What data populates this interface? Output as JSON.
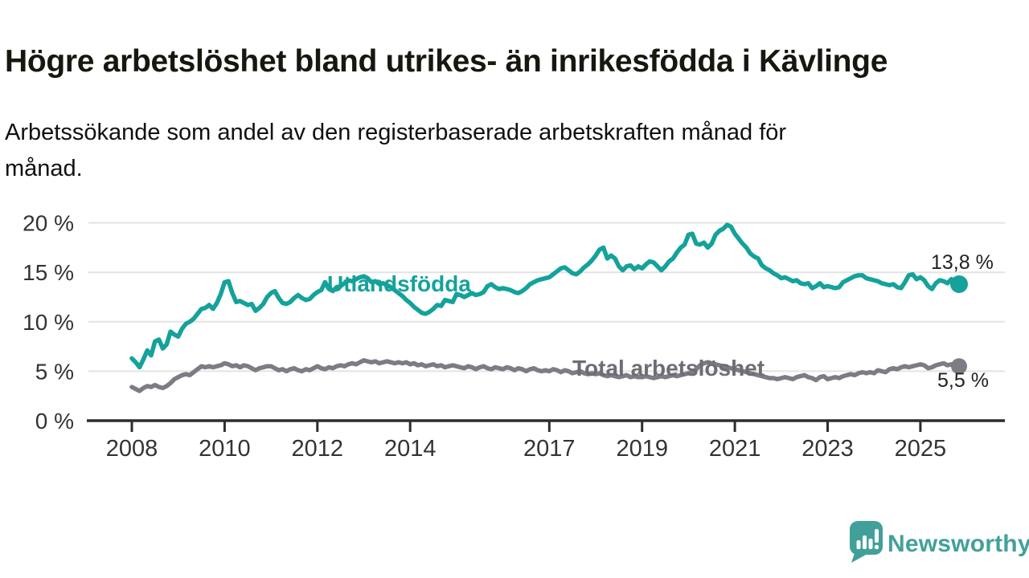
{
  "header": {
    "title": "Högre arbetslöshet bland utrikes- än inrikesfödda i Kävlinge",
    "subtitle_line1": "Arbetssökande som andel av den registerbaserade arbetskraften månad för",
    "subtitle_line2": "månad."
  },
  "chart_data": {
    "type": "line",
    "title": "Högre arbetslöshet bland utrikes- än inrikesfödda i Kävlinge",
    "subtitle": "Arbetssökande som andel av den registerbaserade arbetskraften månad för månad.",
    "x_unit": "month",
    "x_start": "2008-01",
    "x_end": "2025-11",
    "x_tick_years": [
      2008,
      2010,
      2012,
      2014,
      2017,
      2019,
      2021,
      2023,
      2025
    ],
    "x_tick_labels": [
      "2008",
      "2010",
      "2012",
      "2014",
      "2017",
      "2019",
      "2021",
      "2023",
      "2025"
    ],
    "y_ticks": [
      0,
      5,
      10,
      15,
      20
    ],
    "y_tick_labels": [
      "0 %",
      "5 %",
      "10 %",
      "15 %",
      "20 %"
    ],
    "ylim": [
      0,
      21
    ],
    "grid": "horizontal",
    "legend_position": "inline-labels",
    "series": [
      {
        "name": "Utlandsfödda",
        "color": "#14a29b",
        "label_color": "#14a29b",
        "end_label": "13,8 %",
        "end_value": 13.8,
        "values": [
          6.3,
          5.9,
          5.4,
          6.2,
          7.1,
          6.6,
          8.0,
          8.2,
          7.3,
          7.7,
          9.0,
          8.7,
          8.5,
          9.3,
          9.8,
          10.0,
          10.3,
          10.8,
          11.3,
          11.4,
          11.7,
          11.3,
          11.9,
          12.8,
          14.0,
          14.1,
          12.9,
          12.0,
          12.1,
          11.9,
          11.7,
          11.8,
          11.1,
          11.4,
          11.8,
          12.5,
          12.9,
          13.1,
          12.4,
          11.9,
          11.8,
          12.0,
          12.4,
          12.7,
          12.4,
          12.2,
          12.3,
          12.7,
          13.0,
          13.2,
          14.0,
          13.3,
          13.1,
          13.5,
          13.6,
          13.9,
          14.2,
          14.1,
          14.3,
          14.5,
          14.6,
          14.4,
          14.0,
          14.1,
          13.8,
          13.9,
          13.7,
          13.5,
          13.2,
          12.9,
          12.6,
          12.2,
          11.9,
          11.5,
          11.2,
          10.9,
          10.8,
          11.0,
          11.3,
          11.7,
          11.6,
          12.2,
          12.1,
          12.0,
          12.8,
          12.7,
          12.5,
          12.7,
          12.9,
          12.7,
          12.8,
          13.0,
          13.6,
          13.8,
          13.5,
          13.3,
          13.4,
          13.3,
          13.2,
          13.0,
          12.9,
          13.1,
          13.4,
          13.8,
          14.0,
          14.2,
          14.3,
          14.4,
          14.5,
          14.8,
          15.1,
          15.4,
          15.5,
          15.2,
          14.9,
          14.8,
          15.1,
          15.5,
          15.8,
          16.2,
          16.7,
          17.3,
          17.5,
          16.4,
          16.7,
          16.4,
          15.6,
          15.2,
          15.6,
          15.7,
          15.3,
          15.6,
          15.4,
          15.8,
          16.1,
          16.0,
          15.6,
          15.2,
          15.6,
          16.1,
          16.4,
          17.0,
          17.5,
          17.8,
          18.8,
          18.9,
          17.9,
          17.8,
          18.0,
          17.5,
          17.9,
          18.8,
          19.2,
          19.4,
          19.8,
          19.6,
          18.9,
          18.4,
          17.9,
          17.5,
          16.9,
          16.6,
          16.4,
          15.7,
          15.4,
          15.2,
          14.9,
          14.7,
          14.4,
          14.5,
          14.3,
          14.1,
          14.2,
          13.9,
          13.8,
          13.9,
          13.4,
          13.6,
          13.9,
          13.5,
          13.6,
          13.5,
          13.4,
          13.5,
          14.0,
          14.2,
          14.4,
          14.6,
          14.7,
          14.7,
          14.4,
          14.3,
          14.2,
          14.1,
          13.9,
          13.8,
          13.7,
          13.8,
          13.5,
          13.4,
          14.0,
          14.7,
          14.8,
          14.3,
          14.5,
          14.2,
          13.6,
          13.3,
          13.9,
          14.2,
          14.1,
          13.9,
          14.3,
          14.0,
          13.8
        ]
      },
      {
        "name": "Total arbetslöshet",
        "color": "#7c7c84",
        "label_color": "#6d6d75",
        "end_label": "5,5 %",
        "end_value": 5.5,
        "values": [
          3.4,
          3.2,
          3.0,
          3.3,
          3.5,
          3.4,
          3.6,
          3.4,
          3.3,
          3.5,
          3.8,
          4.2,
          4.4,
          4.6,
          4.7,
          4.6,
          4.9,
          5.2,
          5.5,
          5.4,
          5.5,
          5.4,
          5.5,
          5.6,
          5.8,
          5.7,
          5.5,
          5.6,
          5.4,
          5.6,
          5.5,
          5.3,
          5.1,
          5.3,
          5.4,
          5.5,
          5.5,
          5.3,
          5.1,
          5.2,
          5.0,
          5.2,
          5.3,
          5.1,
          5.0,
          5.2,
          5.1,
          5.3,
          5.5,
          5.3,
          5.2,
          5.4,
          5.3,
          5.5,
          5.6,
          5.5,
          5.7,
          5.8,
          5.7,
          5.9,
          6.1,
          6.0,
          5.9,
          6.0,
          5.8,
          5.9,
          6.0,
          5.9,
          5.8,
          5.9,
          5.8,
          5.9,
          5.7,
          5.8,
          5.6,
          5.7,
          5.5,
          5.6,
          5.7,
          5.5,
          5.6,
          5.4,
          5.5,
          5.6,
          5.5,
          5.4,
          5.3,
          5.5,
          5.4,
          5.2,
          5.4,
          5.5,
          5.3,
          5.2,
          5.4,
          5.3,
          5.2,
          5.4,
          5.3,
          5.1,
          5.3,
          5.2,
          5.0,
          5.2,
          5.3,
          5.1,
          5.0,
          5.1,
          5.0,
          5.2,
          5.1,
          4.9,
          5.1,
          5.0,
          4.8,
          4.9,
          5.0,
          4.8,
          4.7,
          4.8,
          4.7,
          4.8,
          4.6,
          4.5,
          4.6,
          4.5,
          4.4,
          4.5,
          4.6,
          4.4,
          4.5,
          4.4,
          4.4,
          4.5,
          4.4,
          4.3,
          4.4,
          4.5,
          4.4,
          4.5,
          4.6,
          4.5,
          4.6,
          4.7,
          4.8,
          4.9,
          5.2,
          5.6,
          5.8,
          5.9,
          5.8,
          5.7,
          5.6,
          5.5,
          5.4,
          5.3,
          5.2,
          5.1,
          5.0,
          4.9,
          4.8,
          4.7,
          4.6,
          4.5,
          4.4,
          4.3,
          4.3,
          4.2,
          4.3,
          4.4,
          4.3,
          4.2,
          4.4,
          4.5,
          4.6,
          4.4,
          4.3,
          4.1,
          4.4,
          4.5,
          4.2,
          4.3,
          4.4,
          4.3,
          4.5,
          4.6,
          4.7,
          4.6,
          4.8,
          4.9,
          4.8,
          4.9,
          4.8,
          5.1,
          5.0,
          4.9,
          5.2,
          5.3,
          5.2,
          5.4,
          5.5,
          5.4,
          5.5,
          5.6,
          5.7,
          5.6,
          5.3,
          5.4,
          5.6,
          5.7,
          5.8,
          5.6,
          5.7,
          5.6,
          5.5
        ]
      }
    ]
  },
  "branding": {
    "logo_text": "Newsworthy",
    "logo_color": "#42a09a"
  }
}
